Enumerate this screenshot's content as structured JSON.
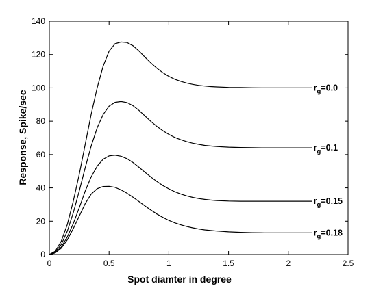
{
  "chart_data": {
    "type": "line",
    "title": "",
    "xlabel": "Spot diamter in degree",
    "ylabel": "Response, Spike/sec",
    "xlim": [
      0,
      2.5
    ],
    "ylim": [
      0,
      140
    ],
    "xticks": [
      0,
      0.5,
      1,
      1.5,
      2,
      2.5
    ],
    "xtick_labels": [
      "0",
      "0.5",
      "1",
      "1.5",
      "2",
      "2.5"
    ],
    "yticks": [
      0,
      20,
      40,
      60,
      80,
      100,
      120,
      140
    ],
    "ytick_labels": [
      "0",
      "20",
      "40",
      "60",
      "80",
      "100",
      "120",
      "140"
    ],
    "grid": false,
    "legend": "none",
    "line_color": "#000000",
    "series": [
      {
        "label_main": "r",
        "label_sub": "g",
        "label_value": "=0.0",
        "x": [
          0,
          0.05,
          0.1,
          0.15,
          0.2,
          0.25,
          0.3,
          0.35,
          0.4,
          0.45,
          0.5,
          0.55,
          0.6,
          0.65,
          0.7,
          0.75,
          0.8,
          0.85,
          0.9,
          0.95,
          1.0,
          1.05,
          1.1,
          1.15,
          1.2,
          1.25,
          1.3,
          1.35,
          1.4,
          1.5,
          1.6,
          1.7,
          1.8,
          1.9,
          2.0,
          2.1,
          2.2
        ],
        "y": [
          0,
          2,
          8,
          18,
          32,
          48,
          66,
          84,
          100,
          113,
          122,
          126.5,
          127.5,
          127.2,
          125.3,
          122.2,
          118.5,
          115,
          111.8,
          109.1,
          106.9,
          105.2,
          103.9,
          102.9,
          102.1,
          101.5,
          101.1,
          100.8,
          100.6,
          100.3,
          100.2,
          100.1,
          100,
          100,
          100,
          100,
          100
        ]
      },
      {
        "label_main": "r",
        "label_sub": "g",
        "label_value": "=0.1",
        "x": [
          0,
          0.05,
          0.1,
          0.15,
          0.2,
          0.25,
          0.3,
          0.35,
          0.4,
          0.45,
          0.5,
          0.55,
          0.6,
          0.65,
          0.7,
          0.75,
          0.8,
          0.85,
          0.9,
          0.95,
          1.0,
          1.05,
          1.1,
          1.15,
          1.2,
          1.25,
          1.3,
          1.35,
          1.4,
          1.5,
          1.6,
          1.7,
          1.8,
          1.9,
          2.0,
          2.1,
          2.2
        ],
        "y": [
          0,
          1.5,
          6,
          14,
          25,
          38,
          52,
          65,
          76,
          84,
          89,
          91.3,
          91.8,
          91.2,
          89.3,
          86.5,
          83.2,
          79.9,
          76.9,
          74.3,
          72.1,
          70.3,
          68.9,
          67.7,
          66.8,
          66.1,
          65.5,
          65.1,
          64.8,
          64.4,
          64.2,
          64.1,
          64,
          64,
          64,
          64,
          64
        ]
      },
      {
        "label_main": "r",
        "label_sub": "g",
        "label_value": "=0.15",
        "x": [
          0,
          0.05,
          0.1,
          0.15,
          0.2,
          0.25,
          0.3,
          0.35,
          0.4,
          0.45,
          0.5,
          0.55,
          0.6,
          0.65,
          0.7,
          0.75,
          0.8,
          0.85,
          0.9,
          0.95,
          1.0,
          1.05,
          1.1,
          1.15,
          1.2,
          1.25,
          1.3,
          1.35,
          1.4,
          1.5,
          1.6,
          1.7,
          1.8,
          1.9,
          2.0,
          2.1,
          2.2
        ],
        "y": [
          0,
          1,
          4.5,
          10.5,
          18.5,
          28,
          38,
          46.5,
          53,
          57.2,
          59.2,
          59.6,
          59,
          57.5,
          55.2,
          52.4,
          49.4,
          46.5,
          43.8,
          41.4,
          39.4,
          37.7,
          36.3,
          35.2,
          34.3,
          33.6,
          33.1,
          32.7,
          32.4,
          32.1,
          32,
          32,
          32,
          32,
          32,
          32,
          32
        ]
      },
      {
        "label_main": "r",
        "label_sub": "g",
        "label_value": "=0.18",
        "x": [
          0,
          0.05,
          0.1,
          0.15,
          0.2,
          0.25,
          0.3,
          0.35,
          0.4,
          0.45,
          0.5,
          0.55,
          0.6,
          0.65,
          0.7,
          0.75,
          0.8,
          0.85,
          0.9,
          0.95,
          1.0,
          1.05,
          1.1,
          1.15,
          1.2,
          1.25,
          1.3,
          1.35,
          1.4,
          1.5,
          1.6,
          1.7,
          1.8,
          1.9,
          2.0,
          2.1,
          2.2
        ],
        "y": [
          0,
          1,
          3.8,
          8.8,
          15.5,
          23,
          30.5,
          36.2,
          39.5,
          40.8,
          40.9,
          40.3,
          38.8,
          36.8,
          34.4,
          31.8,
          29.2,
          26.7,
          24.3,
          22.3,
          20.5,
          19,
          17.8,
          16.8,
          16,
          15.3,
          14.8,
          14.4,
          14.1,
          13.6,
          13.3,
          13.1,
          13,
          13,
          13,
          13,
          13
        ]
      }
    ]
  }
}
